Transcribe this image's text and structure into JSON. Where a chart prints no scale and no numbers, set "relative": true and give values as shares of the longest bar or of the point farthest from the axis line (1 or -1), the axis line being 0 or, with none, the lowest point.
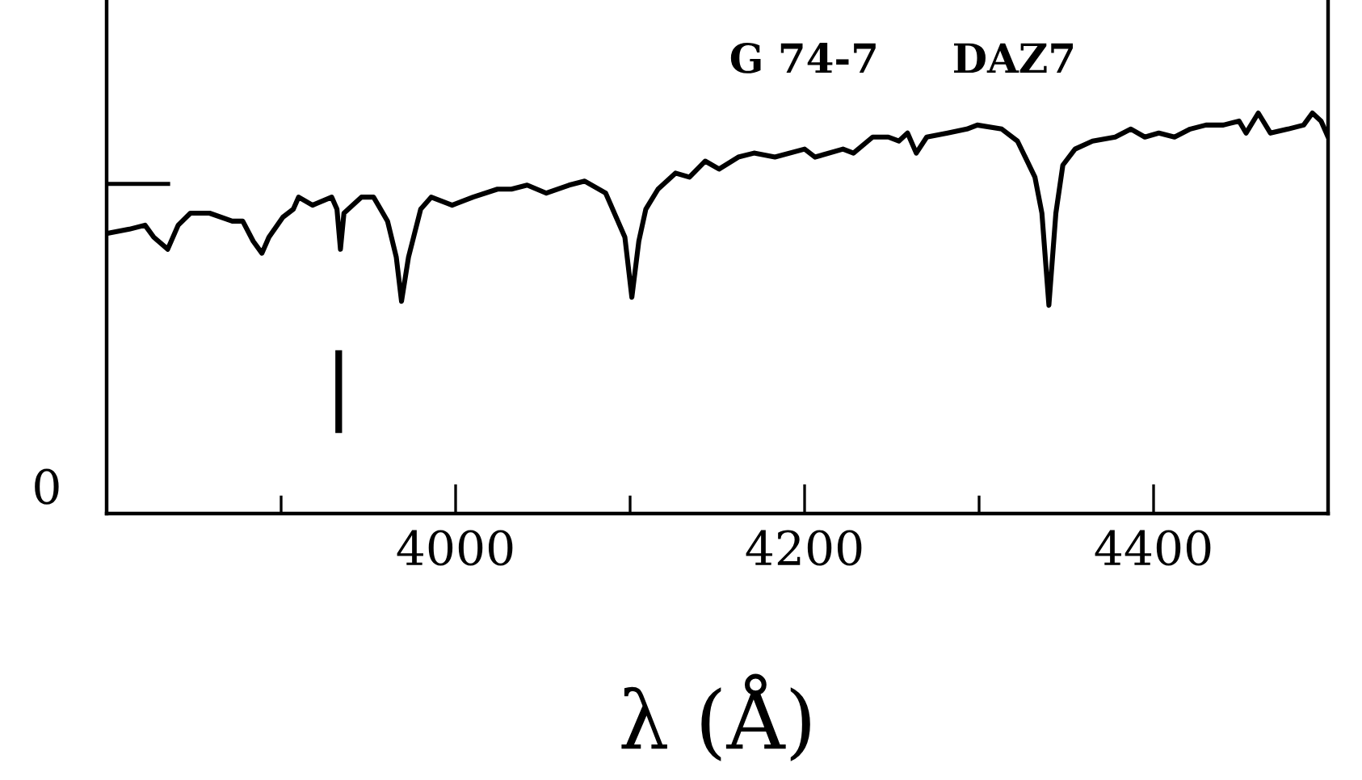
{
  "chart_data": {
    "type": "line",
    "title": "G 74-7",
    "subtitle": "DAZ7",
    "xlabel": "λ (Å)",
    "relative": true,
    "x": [
      3801,
      3813,
      3822,
      3827,
      3835,
      3841,
      3848,
      3859,
      3872,
      3878,
      3884,
      3889,
      3893,
      3901,
      3907,
      3910,
      3918,
      3929,
      3932,
      3934,
      3936,
      3946,
      3953,
      3961,
      3966,
      3969,
      3973,
      3980,
      3986,
      3998,
      4010,
      4024,
      4032,
      4041,
      4052,
      4065,
      4074,
      4086,
      4092,
      4097,
      4101,
      4105,
      4109,
      4116,
      4126,
      4134,
      4143,
      4151,
      4162,
      4171,
      4183,
      4200,
      4206,
      4222,
      4228,
      4239,
      4248,
      4254,
      4259,
      4264,
      4270,
      4282,
      4293,
      4299,
      4313,
      4322,
      4332,
      4336,
      4340,
      4344,
      4348,
      4355,
      4365,
      4378,
      4387,
      4395,
      4403,
      4412,
      4421,
      4430,
      4440,
      4449,
      4453,
      4460,
      4467,
      4477,
      4486,
      4491,
      4496,
      4500
    ],
    "series": [
      {
        "color": "#000000",
        "values": [
          0.7,
          0.71,
          0.72,
          0.69,
          0.66,
          0.72,
          0.75,
          0.75,
          0.73,
          0.73,
          0.68,
          0.65,
          0.69,
          0.74,
          0.76,
          0.79,
          0.77,
          0.79,
          0.76,
          0.66,
          0.75,
          0.79,
          0.79,
          0.73,
          0.64,
          0.53,
          0.64,
          0.76,
          0.79,
          0.77,
          0.79,
          0.81,
          0.81,
          0.82,
          0.8,
          0.82,
          0.83,
          0.8,
          0.74,
          0.69,
          0.54,
          0.68,
          0.76,
          0.81,
          0.85,
          0.84,
          0.88,
          0.86,
          0.89,
          0.9,
          0.89,
          0.91,
          0.89,
          0.91,
          0.9,
          0.94,
          0.94,
          0.93,
          0.95,
          0.9,
          0.94,
          0.95,
          0.96,
          0.97,
          0.96,
          0.93,
          0.84,
          0.75,
          0.52,
          0.75,
          0.87,
          0.91,
          0.93,
          0.94,
          0.96,
          0.94,
          0.95,
          0.94,
          0.96,
          0.97,
          0.97,
          0.98,
          0.95,
          1.0,
          0.95,
          0.96,
          0.97,
          1.0,
          0.98,
          0.94
        ]
      }
    ],
    "xlim": [
      3800,
      4500
    ],
    "xticks": [
      {
        "value": 3900,
        "label": null
      },
      4000,
      {
        "value": 4100,
        "label": null
      },
      4200,
      {
        "value": 4300,
        "label": null
      },
      4400
    ],
    "ref_lines": [
      {
        "axis": "x",
        "value": 3933,
        "color": "#000000"
      }
    ],
    "annotations": [
      "0"
    ]
  }
}
